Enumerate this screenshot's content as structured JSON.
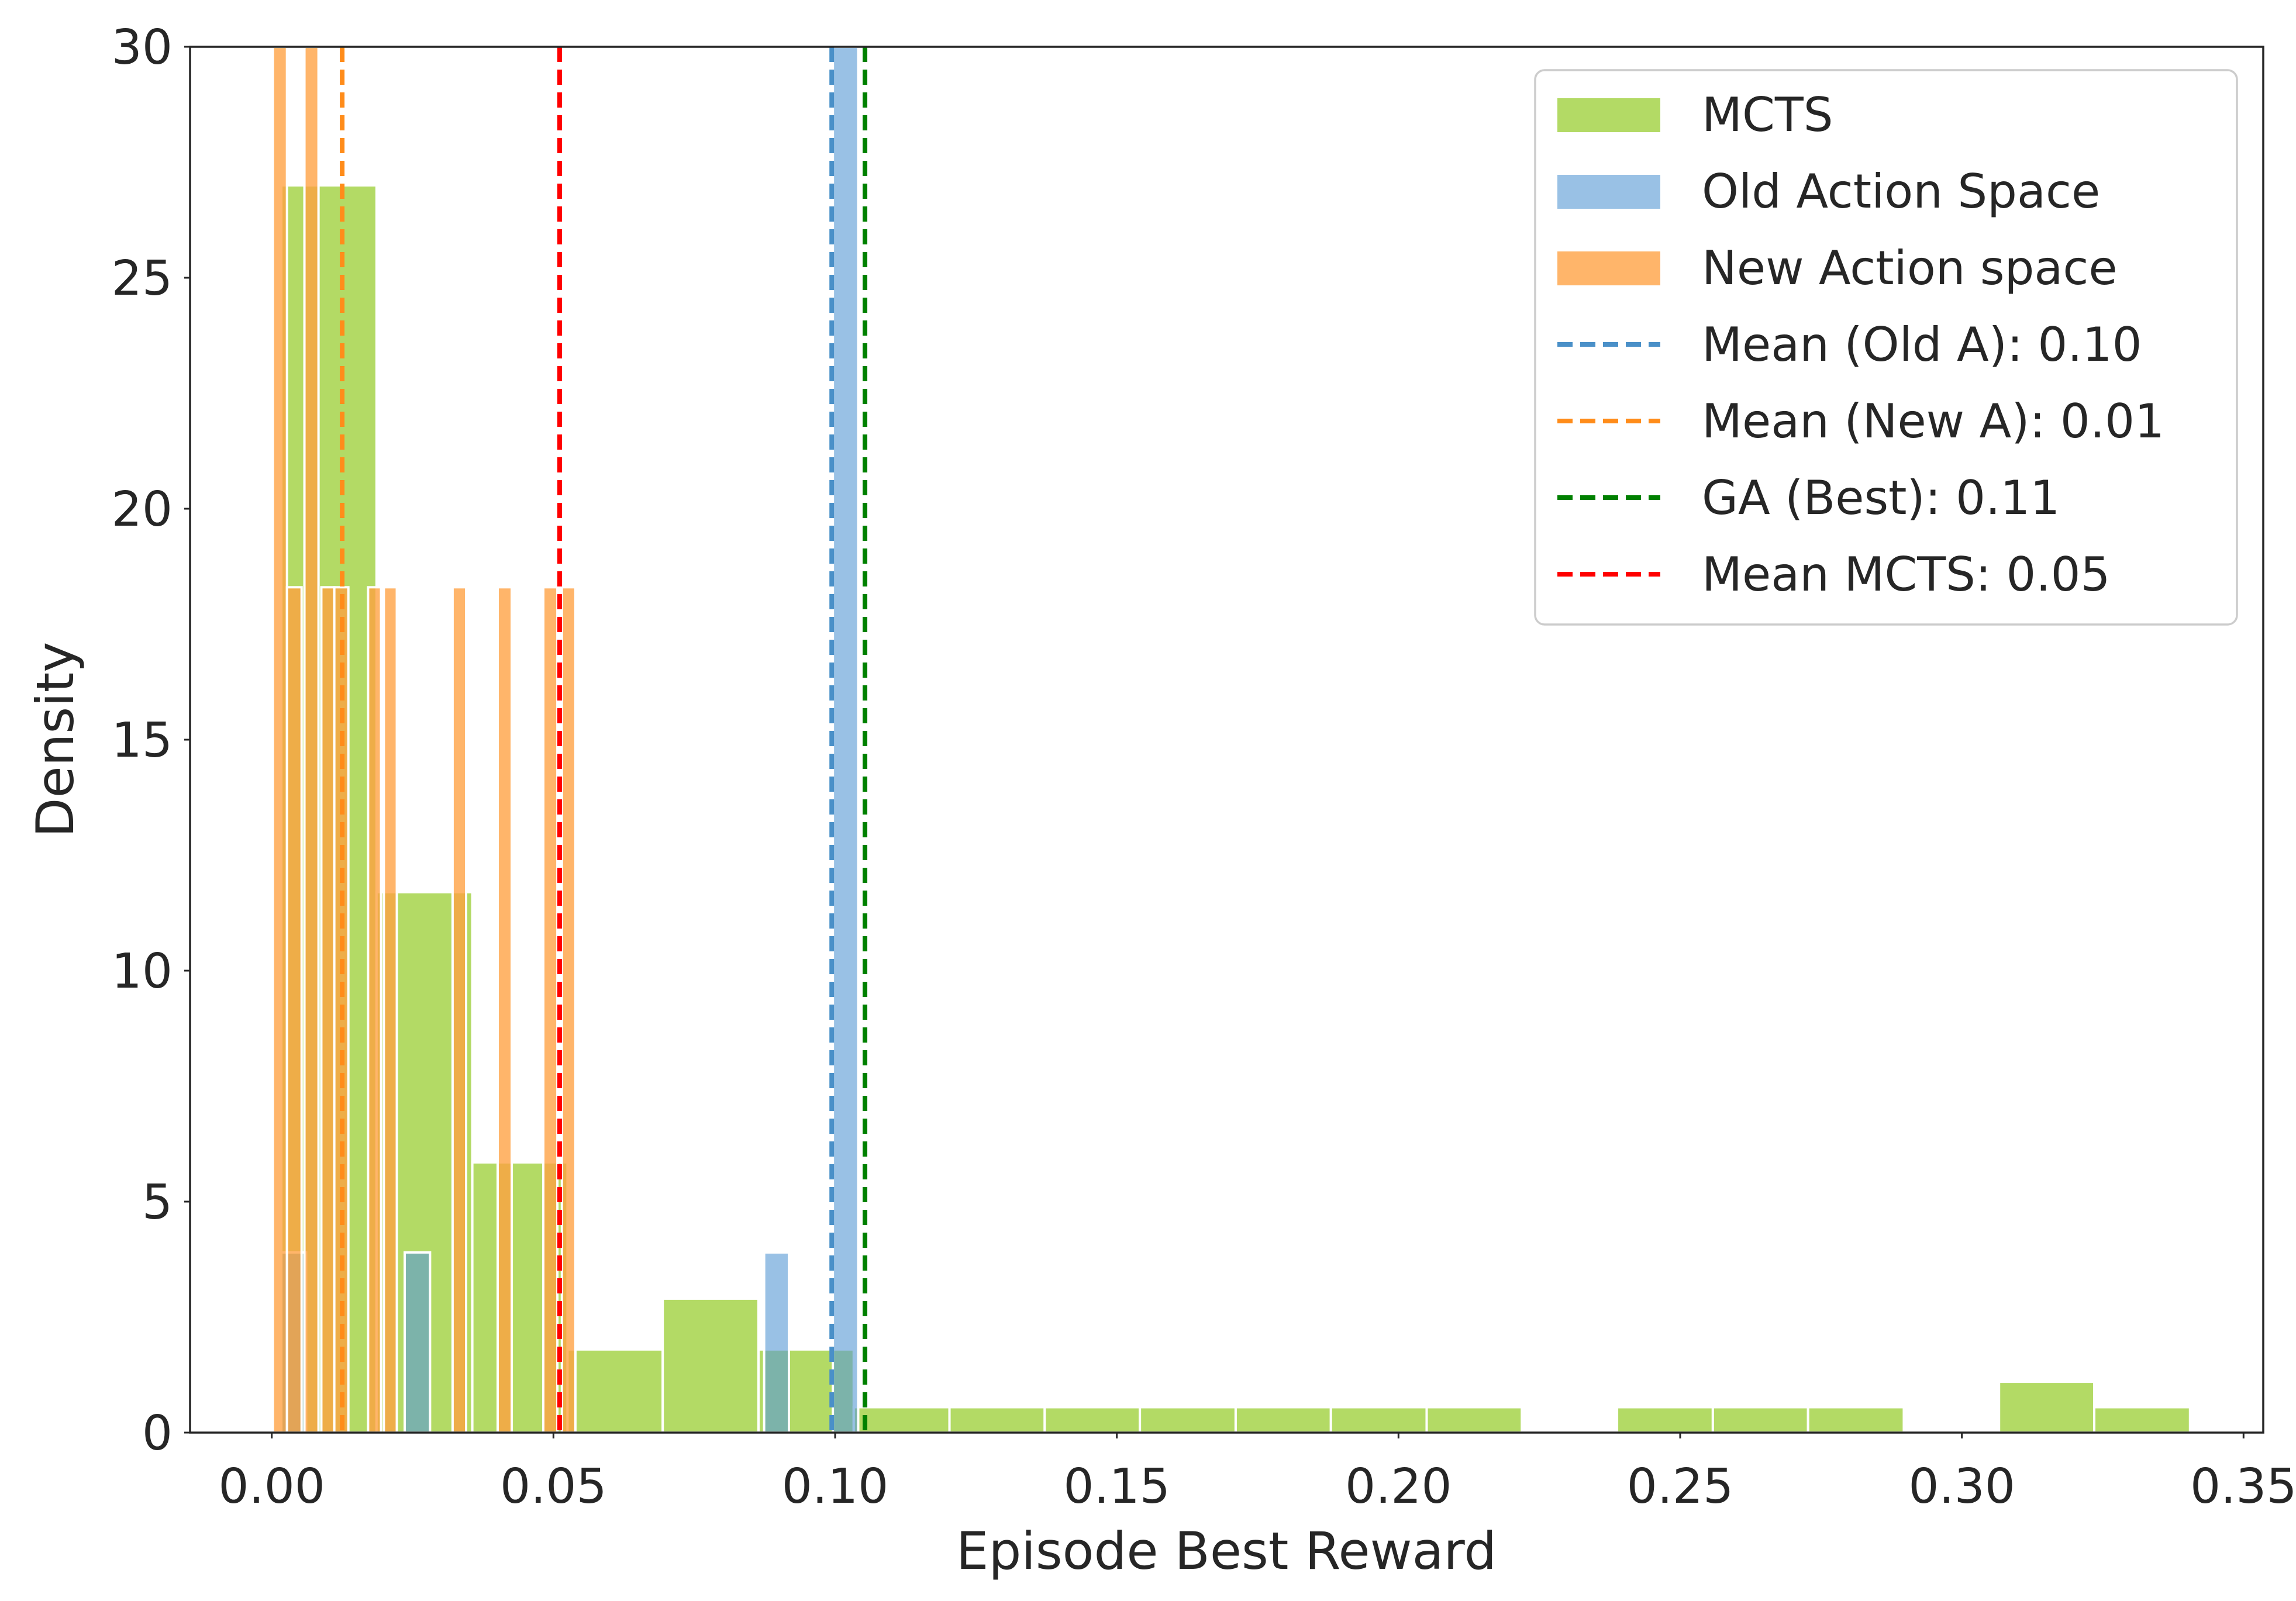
{
  "chart_data": {
    "type": "histogram",
    "xlabel": "Episode Best Reward",
    "ylabel": "Density",
    "xlim": [
      -0.0145,
      0.3535
    ],
    "ylim": [
      0,
      30
    ],
    "xticks": [
      "0.00",
      "0.05",
      "0.10",
      "0.15",
      "0.20",
      "0.25",
      "0.30",
      "0.35"
    ],
    "yticks": [
      "0",
      "5",
      "10",
      "15",
      "20",
      "25",
      "30"
    ],
    "grid": false,
    "legend_position": "top-right",
    "series": [
      {
        "name": "MCTS",
        "kind": "histogram",
        "color": "#9ACD32",
        "opacity": 0.75,
        "bins": [
          {
            "x0": 0.0017,
            "x1": 0.0186,
            "y": 27.0
          },
          {
            "x0": 0.0186,
            "x1": 0.0356,
            "y": 11.7
          },
          {
            "x0": 0.0356,
            "x1": 0.0525,
            "y": 5.85
          },
          {
            "x0": 0.0525,
            "x1": 0.0694,
            "y": 1.8
          },
          {
            "x0": 0.0694,
            "x1": 0.0864,
            "y": 2.9
          },
          {
            "x0": 0.0864,
            "x1": 0.1033,
            "y": 1.8
          },
          {
            "x0": 0.1033,
            "x1": 0.1203,
            "y": 0.55
          },
          {
            "x0": 0.1203,
            "x1": 0.1372,
            "y": 0.55
          },
          {
            "x0": 0.1372,
            "x1": 0.1541,
            "y": 0.55
          },
          {
            "x0": 0.1541,
            "x1": 0.1711,
            "y": 0.55
          },
          {
            "x0": 0.1711,
            "x1": 0.188,
            "y": 0.55
          },
          {
            "x0": 0.188,
            "x1": 0.205,
            "y": 0.55
          },
          {
            "x0": 0.205,
            "x1": 0.2219,
            "y": 0.55
          },
          {
            "x0": 0.2388,
            "x1": 0.2558,
            "y": 0.55
          },
          {
            "x0": 0.2558,
            "x1": 0.2727,
            "y": 0.55
          },
          {
            "x0": 0.2727,
            "x1": 0.2897,
            "y": 0.55
          },
          {
            "x0": 0.3066,
            "x1": 0.3235,
            "y": 1.1
          },
          {
            "x0": 0.3235,
            "x1": 0.3405,
            "y": 0.55
          }
        ]
      },
      {
        "name": "Old Action Space",
        "kind": "histogram",
        "color": "#5B9BD5",
        "opacity": 0.62,
        "bins": [
          {
            "x0": 0.0017,
            "x1": 0.0061,
            "y": 3.9
          },
          {
            "x0": 0.0236,
            "x1": 0.0281,
            "y": 3.9
          },
          {
            "x0": 0.0874,
            "x1": 0.0918,
            "y": 3.9
          },
          {
            "x0": 0.0996,
            "x1": 0.1041,
            "y": 30.0
          }
        ]
      },
      {
        "name": "New Action space",
        "kind": "histogram",
        "color": "#FFA040",
        "opacity": 0.78,
        "bins": [
          {
            "x0": 0.0002,
            "x1": 0.0027,
            "y": 30.0
          },
          {
            "x0": 0.0027,
            "x1": 0.0053,
            "y": 18.3
          },
          {
            "x0": 0.0058,
            "x1": 0.0083,
            "y": 30.0
          },
          {
            "x0": 0.0088,
            "x1": 0.0111,
            "y": 18.3
          },
          {
            "x0": 0.0111,
            "x1": 0.0136,
            "y": 18.3
          },
          {
            "x0": 0.0171,
            "x1": 0.0194,
            "y": 18.3
          },
          {
            "x0": 0.0199,
            "x1": 0.0222,
            "y": 18.3
          },
          {
            "x0": 0.0321,
            "x1": 0.0345,
            "y": 18.3
          },
          {
            "x0": 0.0401,
            "x1": 0.0426,
            "y": 18.3
          },
          {
            "x0": 0.0482,
            "x1": 0.0507,
            "y": 18.3
          },
          {
            "x0": 0.0515,
            "x1": 0.0539,
            "y": 18.3
          }
        ]
      }
    ],
    "reference_lines": [
      {
        "label": "Mean (Old A): 0.10",
        "x": 0.0994,
        "color": "#4A90C8",
        "style": "dashed"
      },
      {
        "label": "Mean (New A): 0.01",
        "x": 0.0125,
        "color": "#FF8C1A",
        "style": "dashed"
      },
      {
        "label": "GA (Best): 0.11",
        "x": 0.1053,
        "color": "#008000",
        "style": "dashed"
      },
      {
        "label": "Mean MCTS: 0.05",
        "x": 0.0511,
        "color": "#FF0000",
        "style": "dashed"
      }
    ]
  }
}
